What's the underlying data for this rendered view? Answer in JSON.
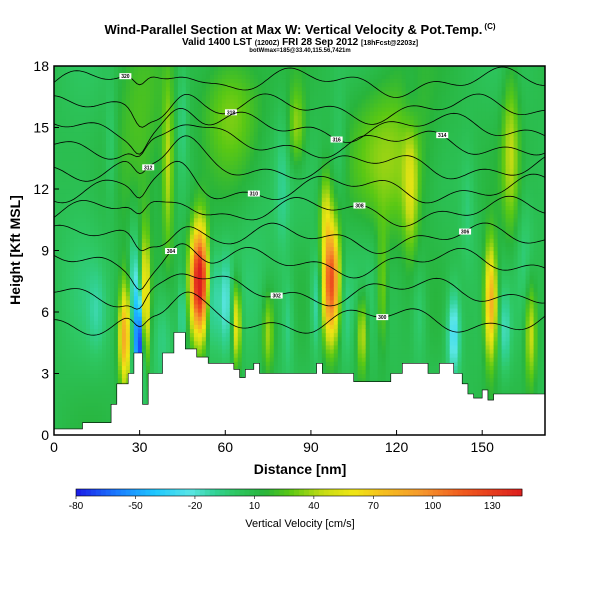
{
  "header": {
    "title": "Wind-Parallel Section at Max W: Vertical Velocity & Pot.Temp.",
    "copyright": "(C)",
    "subtitle": "Valid 1400 LST",
    "subtitle_utc": "(1200Z)",
    "subtitle_date": "FRI 28 Sep 2012",
    "subtitle_source": "[18hFcst@2203z]",
    "note": "botWmax=185@33.40,115.56,7421m"
  },
  "chart_data": {
    "type": "heatmap",
    "title": "Wind-Parallel Section at Max W: Vertical Velocity & Pot.Temp.",
    "xlabel": "Distance [nm]",
    "ylabel": "Height [Kft MSL]",
    "xlim": [
      0,
      172
    ],
    "ylim": [
      0,
      18
    ],
    "x_ticks": [
      0,
      30,
      60,
      90,
      120,
      150
    ],
    "y_ticks": [
      0,
      3,
      6,
      9,
      12,
      15,
      18
    ],
    "colorbar": {
      "label": "Vertical Velocity [cm/s]",
      "tick_values": [
        -80,
        -50,
        -20,
        10,
        40,
        70,
        100,
        130
      ],
      "tick_labels": [
        "-80",
        "-50",
        "-20",
        "10",
        "40",
        "70",
        "100",
        "130"
      ],
      "range": [
        -80,
        145
      ],
      "stops": [
        {
          "value": -80,
          "color": "#1a1ae6"
        },
        {
          "value": -60,
          "color": "#1a78ff"
        },
        {
          "value": -40,
          "color": "#1ec8ff"
        },
        {
          "value": -22,
          "color": "#5ae6e6"
        },
        {
          "value": -10,
          "color": "#32d296"
        },
        {
          "value": 0,
          "color": "#2ec864"
        },
        {
          "value": 15,
          "color": "#28b43c"
        },
        {
          "value": 28,
          "color": "#5ac814"
        },
        {
          "value": 45,
          "color": "#c8dc14"
        },
        {
          "value": 60,
          "color": "#f0e614"
        },
        {
          "value": 75,
          "color": "#f5be1e"
        },
        {
          "value": 95,
          "color": "#f5962d"
        },
        {
          "value": 115,
          "color": "#f05a1e"
        },
        {
          "value": 145,
          "color": "#dc1e1e"
        }
      ]
    },
    "terrain": [
      [
        0,
        0.3
      ],
      [
        10,
        0.3
      ],
      [
        10,
        0.6
      ],
      [
        20,
        0.6
      ],
      [
        20,
        1.5
      ],
      [
        22,
        1.5
      ],
      [
        22,
        2.5
      ],
      [
        26,
        2.5
      ],
      [
        26,
        3
      ],
      [
        28,
        3
      ],
      [
        28,
        4
      ],
      [
        31,
        4
      ],
      [
        31,
        1.5
      ],
      [
        33,
        1.5
      ],
      [
        33,
        3
      ],
      [
        38,
        3
      ],
      [
        38,
        4
      ],
      [
        42,
        4
      ],
      [
        42,
        5
      ],
      [
        46,
        5
      ],
      [
        46,
        4.2
      ],
      [
        50,
        4.2
      ],
      [
        50,
        3.8
      ],
      [
        54,
        3.8
      ],
      [
        54,
        3.5
      ],
      [
        63,
        3.5
      ],
      [
        63,
        3.2
      ],
      [
        65,
        3.2
      ],
      [
        65,
        2.8
      ],
      [
        67,
        2.8
      ],
      [
        67,
        3.2
      ],
      [
        70,
        3.2
      ],
      [
        70,
        3.5
      ],
      [
        72,
        3.5
      ],
      [
        72,
        3
      ],
      [
        92,
        3
      ],
      [
        92,
        3.5
      ],
      [
        94,
        3.5
      ],
      [
        94,
        3
      ],
      [
        105,
        3
      ],
      [
        105,
        2.6
      ],
      [
        118,
        2.6
      ],
      [
        118,
        3
      ],
      [
        122,
        3
      ],
      [
        122,
        3.5
      ],
      [
        131,
        3.5
      ],
      [
        131,
        3
      ],
      [
        135,
        3
      ],
      [
        135,
        3.5
      ],
      [
        140,
        3.5
      ],
      [
        140,
        3
      ],
      [
        143,
        3
      ],
      [
        143,
        2.5
      ],
      [
        145,
        2.5
      ],
      [
        145,
        2
      ],
      [
        147,
        2
      ],
      [
        147,
        1.8
      ],
      [
        150,
        1.8
      ],
      [
        150,
        2.2
      ],
      [
        152,
        2.2
      ],
      [
        152,
        1.7
      ],
      [
        154,
        1.7
      ],
      [
        154,
        2
      ],
      [
        172,
        2
      ]
    ],
    "cells": [
      {
        "x": 118,
        "y": 13.5,
        "sx": 14,
        "sy": 4,
        "v": 28
      },
      {
        "x": 62,
        "y": 16,
        "sx": 10,
        "sy": 3,
        "v": 25
      },
      {
        "x": 30,
        "y": 14,
        "sx": 9,
        "sy": 5,
        "v": 18
      },
      {
        "x": 10,
        "y": 10,
        "sx": 8,
        "sy": 6,
        "v": -8
      },
      {
        "x": 70,
        "y": 8,
        "sx": 8,
        "sy": 4,
        "v": -8
      },
      {
        "x": 110,
        "y": 9,
        "sx": 8,
        "sy": 4,
        "v": -8
      },
      {
        "x": 38,
        "y": 5,
        "sx": 4,
        "sy": 2.5,
        "v": -18
      },
      {
        "x": 25,
        "y": 4.8,
        "sx": 2.2,
        "sy": 2.5,
        "v": 80
      },
      {
        "x": 28,
        "y": 6,
        "sx": 1.8,
        "sy": 4,
        "v": -45
      },
      {
        "x": 30,
        "y": 4.5,
        "sx": 1.4,
        "sy": 2.5,
        "v": -80
      },
      {
        "x": 32,
        "y": 6.5,
        "sx": 1.6,
        "sy": 3,
        "v": 60
      },
      {
        "x": 51,
        "y": 7.5,
        "sx": 3.2,
        "sy": 2.6,
        "v": 150
      },
      {
        "x": 55,
        "y": 7,
        "sx": 2,
        "sy": 2.5,
        "v": -35
      },
      {
        "x": 60,
        "y": 6.5,
        "sx": 2.5,
        "sy": 2.5,
        "v": -22
      },
      {
        "x": 64,
        "y": 5.5,
        "sx": 1.6,
        "sy": 2,
        "v": 60
      },
      {
        "x": 45,
        "y": 6,
        "sx": 1.5,
        "sy": 2,
        "v": -25
      },
      {
        "x": 97,
        "y": 7.5,
        "sx": 3,
        "sy": 2.8,
        "v": 115
      },
      {
        "x": 92,
        "y": 6.5,
        "sx": 2,
        "sy": 2.5,
        "v": -28
      },
      {
        "x": 102,
        "y": 6,
        "sx": 2,
        "sy": 2.5,
        "v": -12
      },
      {
        "x": 108,
        "y": 5,
        "sx": 2,
        "sy": 2,
        "v": 42
      },
      {
        "x": 140,
        "y": 5,
        "sx": 2.4,
        "sy": 2.2,
        "v": -40
      },
      {
        "x": 153,
        "y": 6.5,
        "sx": 2.2,
        "sy": 2.8,
        "v": 80
      },
      {
        "x": 158,
        "y": 5,
        "sx": 2,
        "sy": 2,
        "v": -20
      },
      {
        "x": 167,
        "y": 5,
        "sx": 2,
        "sy": 2.5,
        "v": 40
      },
      {
        "x": 75,
        "y": 5,
        "sx": 2,
        "sy": 2,
        "v": 32
      },
      {
        "x": 82,
        "y": 5.5,
        "sx": 2.2,
        "sy": 2.5,
        "v": -18
      },
      {
        "x": 128,
        "y": 6,
        "sx": 2.5,
        "sy": 2.5,
        "v": -15
      },
      {
        "x": 40,
        "y": 13,
        "sx": 2,
        "sy": 4,
        "v": 35
      },
      {
        "x": 45,
        "y": 15.5,
        "sx": 2,
        "sy": 3,
        "v": -15
      },
      {
        "x": 20,
        "y": 14,
        "sx": 2,
        "sy": 3,
        "v": -15
      },
      {
        "x": 80,
        "y": 12,
        "sx": 2.5,
        "sy": 4,
        "v": -12
      },
      {
        "x": 100,
        "y": 14,
        "sx": 2.5,
        "sy": 3,
        "v": -12
      },
      {
        "x": 125,
        "y": 12,
        "sx": 2.5,
        "sy": 3,
        "v": 32
      },
      {
        "x": 145,
        "y": 11,
        "sx": 2.5,
        "sy": 3,
        "v": -12
      },
      {
        "x": 160,
        "y": 14,
        "sx": 3,
        "sy": 4,
        "v": 32
      },
      {
        "x": 15,
        "y": 6,
        "sx": 3,
        "sy": 2,
        "v": -12
      },
      {
        "x": 125,
        "y": 16,
        "sx": 3,
        "sy": 2,
        "v": -10
      },
      {
        "x": 85,
        "y": 15,
        "sx": 3,
        "sy": 2,
        "v": 30
      },
      {
        "x": 165,
        "y": 9,
        "sx": 3,
        "sy": 3,
        "v": -12
      },
      {
        "x": 95,
        "y": 11,
        "sx": 2,
        "sy": 2,
        "v": 30
      },
      {
        "x": 115,
        "y": 7,
        "sx": 2,
        "sy": 3,
        "v": 28
      }
    ],
    "isentropes": [
      {
        "base": 17.2,
        "label": "320"
      },
      {
        "base": 15.9,
        "label": "318"
      },
      {
        "base": 15.0,
        "label": "316"
      },
      {
        "base": 14.2,
        "label": "314"
      },
      {
        "base": 13.1,
        "label": "312"
      },
      {
        "base": 12.0,
        "label": "310"
      },
      {
        "base": 10.9,
        "label": "308"
      },
      {
        "base": 9.6,
        "label": "306"
      },
      {
        "base": 8.4,
        "label": "304"
      },
      {
        "base": 7.0,
        "label": "302"
      },
      {
        "base": 5.6,
        "label": "300"
      }
    ]
  }
}
